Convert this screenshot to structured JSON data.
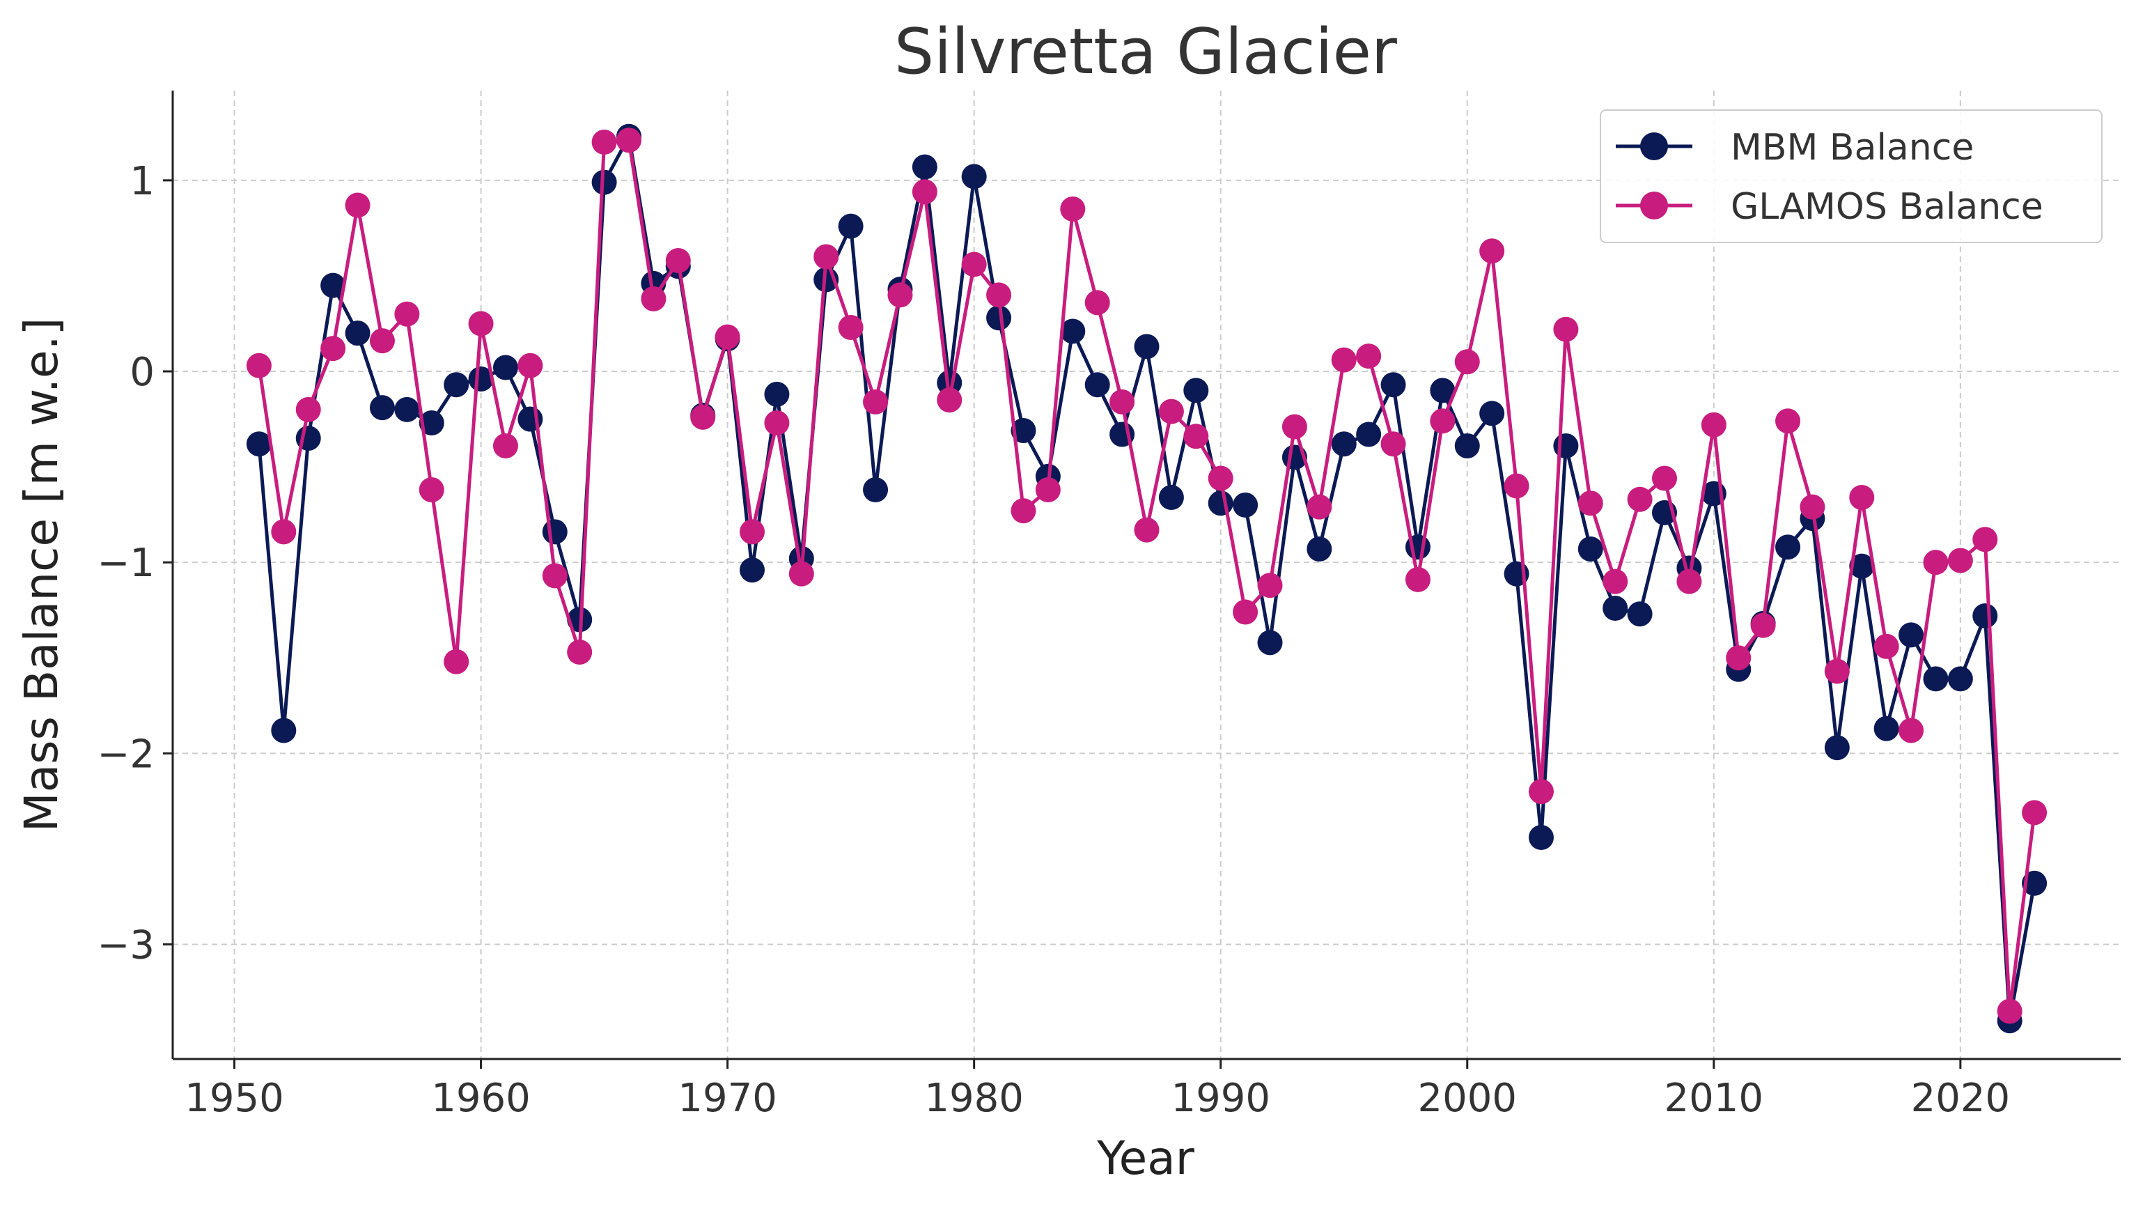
{
  "chart_data": {
    "type": "line",
    "title": "Silvretta Glacier",
    "xlabel": "Year",
    "ylabel": "Mass Balance [m w.e.]",
    "xlim": [
      1947.5,
      2026.5
    ],
    "ylim": [
      -3.6,
      1.47
    ],
    "xticks": [
      1950,
      1960,
      1970,
      1980,
      1990,
      2000,
      2010,
      2020
    ],
    "yticks": [
      1,
      0,
      -1,
      -2,
      -3
    ],
    "ytick_labels": [
      "1",
      "0",
      "−1",
      "−2",
      "−3"
    ],
    "grid": true,
    "legend_position": "top-right",
    "x": [
      1951,
      1952,
      1953,
      1954,
      1955,
      1956,
      1957,
      1958,
      1959,
      1960,
      1961,
      1962,
      1963,
      1964,
      1965,
      1966,
      1967,
      1968,
      1969,
      1970,
      1971,
      1972,
      1973,
      1974,
      1975,
      1976,
      1977,
      1978,
      1979,
      1980,
      1981,
      1982,
      1983,
      1984,
      1985,
      1986,
      1987,
      1988,
      1989,
      1990,
      1991,
      1992,
      1993,
      1994,
      1995,
      1996,
      1997,
      1998,
      1999,
      2000,
      2001,
      2002,
      2003,
      2004,
      2005,
      2006,
      2007,
      2008,
      2009,
      2010,
      2011,
      2012,
      2013,
      2014,
      2015,
      2016,
      2017,
      2018,
      2019,
      2020,
      2021,
      2022,
      2023
    ],
    "series": [
      {
        "name": "MBM Balance",
        "color": "#0b1a55",
        "values": [
          -0.38,
          -1.88,
          -0.35,
          0.45,
          0.2,
          -0.19,
          -0.2,
          -0.27,
          -0.07,
          -0.04,
          0.02,
          -0.25,
          -0.84,
          -1.3,
          0.99,
          1.23,
          0.46,
          0.55,
          -0.23,
          0.17,
          -1.04,
          -0.12,
          -0.98,
          0.48,
          0.76,
          -0.62,
          0.43,
          1.07,
          -0.06,
          1.02,
          0.28,
          -0.31,
          -0.55,
          0.21,
          -0.07,
          -0.33,
          0.13,
          -0.66,
          -0.1,
          -0.69,
          -0.7,
          -1.42,
          -0.45,
          -0.93,
          -0.38,
          -0.33,
          -0.07,
          -0.92,
          -0.1,
          -0.39,
          -0.22,
          -1.06,
          -2.44,
          -0.39,
          -0.93,
          -1.24,
          -1.27,
          -0.74,
          -1.03,
          -0.64,
          -1.56,
          -1.32,
          -0.92,
          -0.77,
          -1.97,
          -1.02,
          -1.87,
          -1.38,
          -1.61,
          -1.61,
          -1.28,
          -3.4,
          -2.68
        ]
      },
      {
        "name": "GLAMOS Balance",
        "color": "#c81d7e",
        "values": [
          0.03,
          -0.84,
          -0.2,
          0.12,
          0.87,
          0.16,
          0.3,
          -0.62,
          -1.52,
          0.25,
          -0.39,
          0.03,
          -1.07,
          -1.47,
          1.2,
          1.21,
          0.38,
          0.58,
          -0.24,
          0.18,
          -0.84,
          -0.27,
          -1.06,
          0.6,
          0.23,
          -0.16,
          0.4,
          0.94,
          -0.15,
          0.56,
          0.4,
          -0.73,
          -0.62,
          0.85,
          0.36,
          -0.16,
          -0.83,
          -0.21,
          -0.34,
          -0.56,
          -1.26,
          -1.12,
          -0.29,
          -0.71,
          0.06,
          0.08,
          -0.38,
          -1.09,
          -0.26,
          0.05,
          0.63,
          -0.6,
          -2.2,
          0.22,
          -0.69,
          -1.1,
          -0.67,
          -0.56,
          -1.1,
          -0.28,
          -1.5,
          -1.33,
          -0.26,
          -0.71,
          -1.57,
          -0.66,
          -1.44,
          -1.88,
          -1.0,
          -0.99,
          -0.88,
          -3.35,
          -2.31
        ]
      }
    ]
  }
}
